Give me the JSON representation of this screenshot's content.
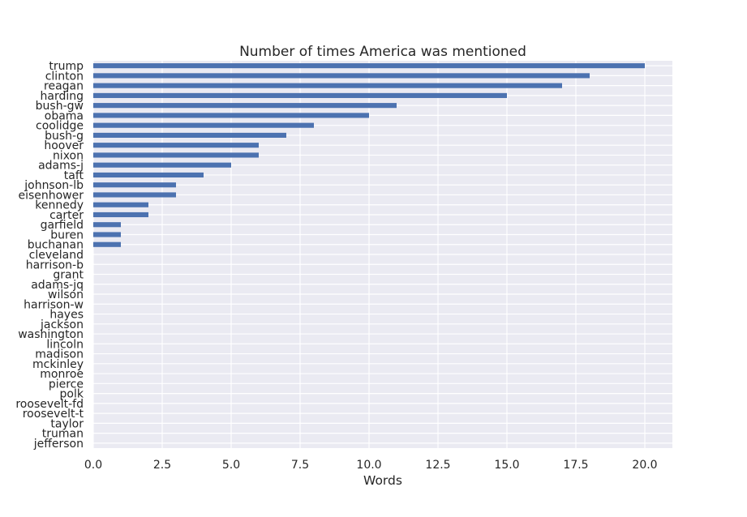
{
  "chart_data": {
    "type": "bar",
    "orientation": "horizontal",
    "title": "Number of times America was mentioned",
    "xlabel": "Words",
    "ylabel": "",
    "xlim": [
      0,
      21
    ],
    "xticks": [
      "0.0",
      "2.5",
      "5.0",
      "7.5",
      "10.0",
      "12.5",
      "15.0",
      "17.5",
      "20.0"
    ],
    "grid": true,
    "legend": "none",
    "bar_color": "#4c72b0",
    "background_color": "#eaeaf2",
    "categories": [
      "trump",
      "clinton",
      "reagan",
      "harding",
      "bush-gw",
      "obama",
      "coolidge",
      "bush-g",
      "hoover",
      "nixon",
      "adams-j",
      "taft",
      "johnson-lb",
      "eisenhower",
      "kennedy",
      "carter",
      "garfield",
      "buren",
      "buchanan",
      "cleveland",
      "harrison-b",
      "grant",
      "adams-jq",
      "wilson",
      "harrison-w",
      "hayes",
      "jackson",
      "washington",
      "lincoln",
      "madison",
      "mckinley",
      "monroe",
      "pierce",
      "polk",
      "roosevelt-fd",
      "roosevelt-t",
      "taylor",
      "truman",
      "jefferson"
    ],
    "values": [
      20,
      18,
      17,
      15,
      11,
      10,
      8,
      7,
      6,
      6,
      5,
      4,
      3,
      3,
      2,
      2,
      1,
      1,
      1,
      0,
      0,
      0,
      0,
      0,
      0,
      0,
      0,
      0,
      0,
      0,
      0,
      0,
      0,
      0,
      0,
      0,
      0,
      0,
      0
    ]
  }
}
